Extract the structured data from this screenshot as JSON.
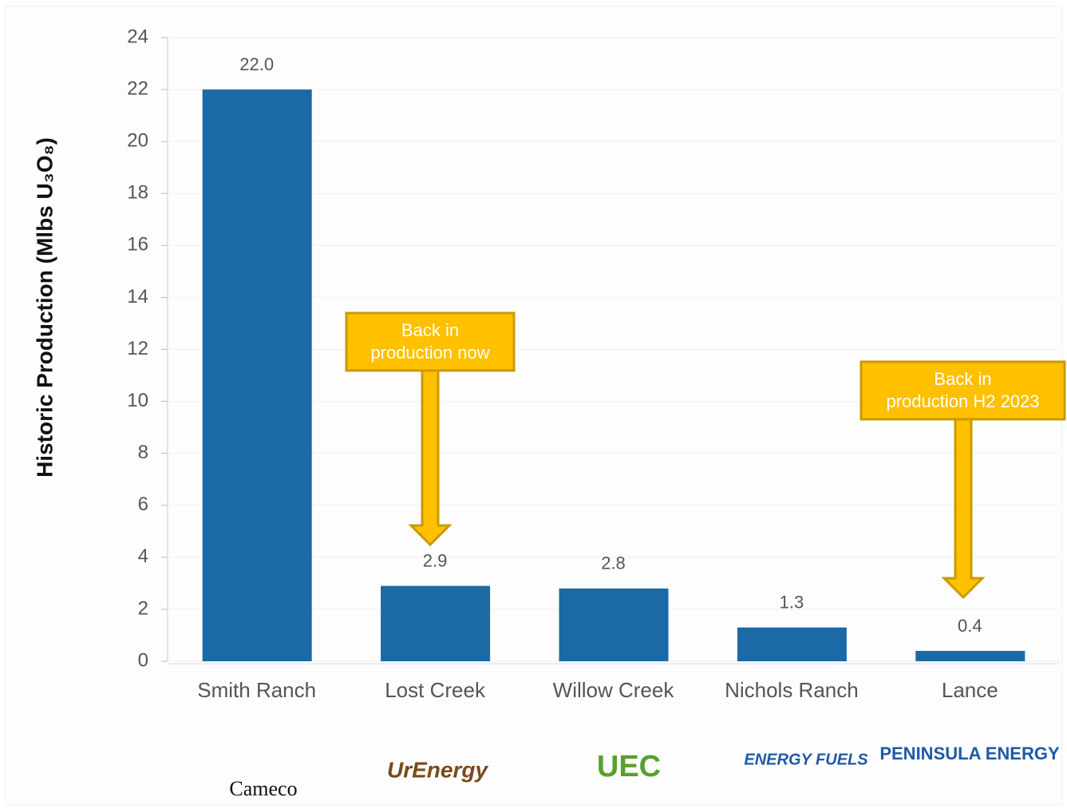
{
  "chart_data": {
    "type": "bar",
    "ylabel": "Historic Production (Mlbs U₃O₈)",
    "categories": [
      "Smith Ranch",
      "Lost Creek",
      "Willow Creek",
      "Nichols Ranch",
      "Lance"
    ],
    "values": [
      22.0,
      2.9,
      2.8,
      1.3,
      0.4
    ],
    "value_labels": [
      "22.0",
      "2.9",
      "2.8",
      "1.3",
      "0.4"
    ],
    "color": "#1b6aa5",
    "ylim": [
      0,
      24
    ],
    "yticks": [
      0,
      2,
      4,
      6,
      8,
      10,
      12,
      14,
      16,
      18,
      20,
      22,
      24
    ],
    "grid": true,
    "annotations": [
      [
        "Back in",
        "production now"
      ],
      [
        "Back in",
        "production H2 2023"
      ]
    ],
    "logos": [
      "Cameco",
      "UrEnergy",
      "UEC",
      "ENERGY FUELS",
      "PENINSULA ENERGY"
    ]
  }
}
